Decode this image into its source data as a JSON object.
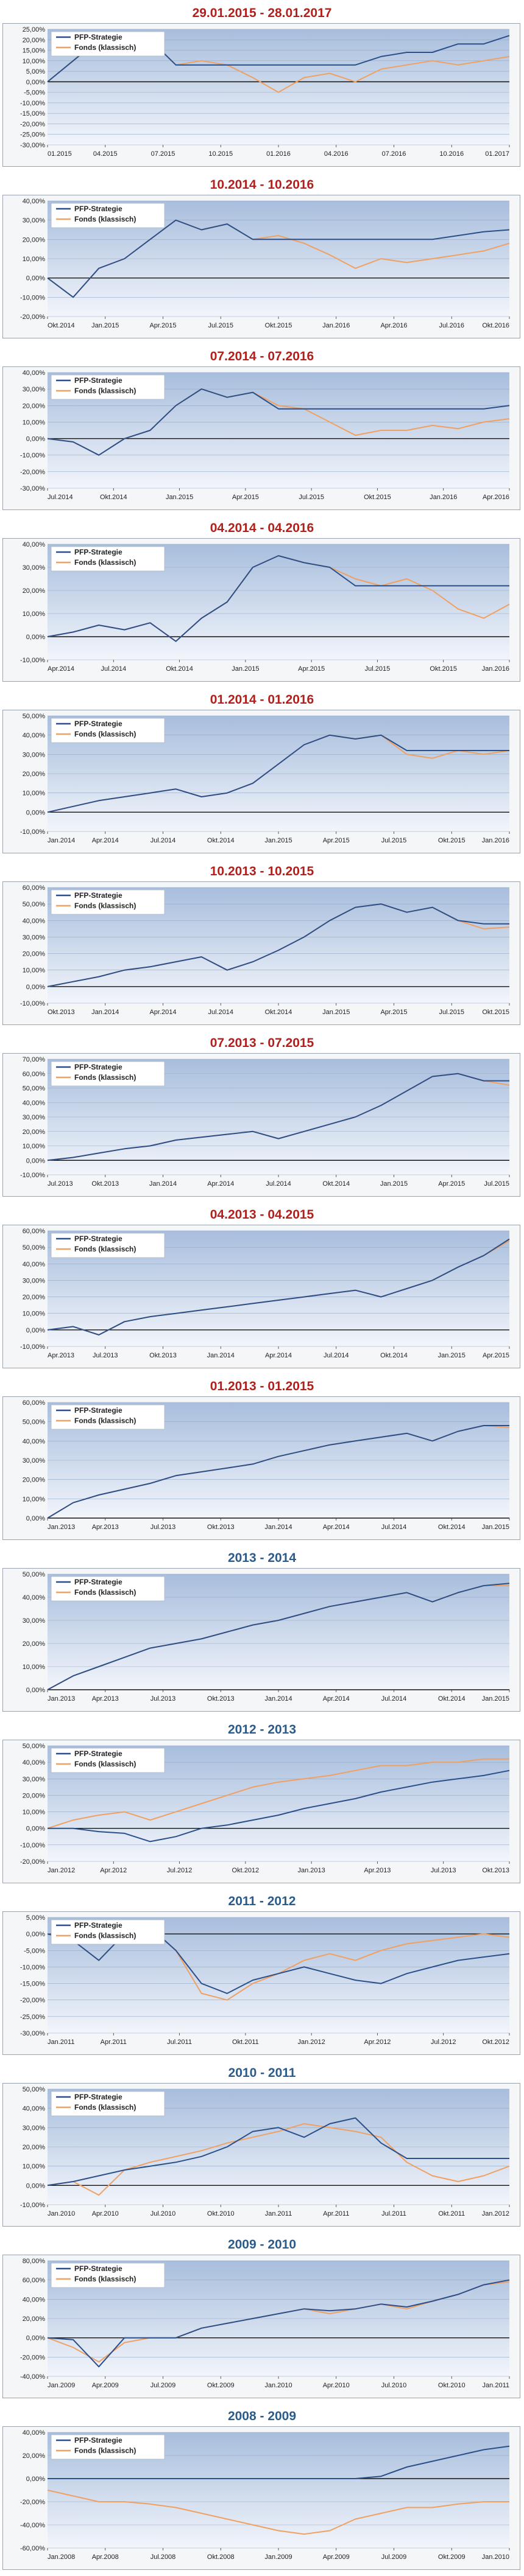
{
  "colors": {
    "strategy": "#2a4f8a",
    "fund": "#f0a060",
    "title_red": "#b0201c",
    "title_blue": "#2a5b8a",
    "plot_top": "#a8bedd",
    "plot_bottom": "#f2f5fb",
    "grid": "#95a8c4"
  },
  "chart_data": [
    {
      "type": "line",
      "title": "29.01.2015 - 28.01.2017",
      "title_color": "red",
      "ylim": [
        -30,
        25
      ],
      "yticks": [
        25,
        20,
        15,
        10,
        5,
        0,
        -5,
        -10,
        -15,
        -20,
        -25,
        -30
      ],
      "xtick_labels": [
        "01.2015",
        "04.2015",
        "07.2015",
        "10.2015",
        "01.2016",
        "04.2016",
        "07.2016",
        "10.2016",
        "01.2017"
      ],
      "series": [
        {
          "name": "PFP-Strategie",
          "values": [
            0,
            10,
            20,
            16,
            20,
            8,
            8,
            8,
            8,
            8,
            8,
            8,
            8,
            12,
            14,
            14,
            18,
            18,
            22
          ]
        },
        {
          "name": "Fonds (klassisch)",
          "values": [
            0,
            10,
            20,
            16,
            20,
            8,
            10,
            8,
            2,
            -5,
            2,
            4,
            0,
            6,
            8,
            10,
            8,
            10,
            12
          ]
        }
      ]
    },
    {
      "type": "line",
      "title": "10.2014 - 10.2016",
      "title_color": "red",
      "ylim": [
        -20,
        40
      ],
      "yticks": [
        40,
        30,
        20,
        10,
        0,
        -10,
        -20
      ],
      "xtick_labels": [
        "Okt.2014",
        "Jan.2015",
        "Apr.2015",
        "Jul.2015",
        "Okt.2015",
        "Jan.2016",
        "Apr.2016",
        "Jul.2016",
        "Okt.2016"
      ],
      "series": [
        {
          "name": "PFP-Strategie",
          "values": [
            0,
            -10,
            5,
            10,
            20,
            30,
            25,
            28,
            20,
            20,
            20,
            20,
            20,
            20,
            20,
            20,
            22,
            24,
            25
          ]
        },
        {
          "name": "Fonds (klassisch)",
          "values": [
            0,
            -10,
            5,
            10,
            20,
            30,
            25,
            28,
            20,
            22,
            18,
            12,
            5,
            10,
            8,
            10,
            12,
            14,
            18
          ]
        }
      ]
    },
    {
      "type": "line",
      "title": "07.2014 - 07.2016",
      "title_color": "red",
      "ylim": [
        -30,
        40
      ],
      "yticks": [
        40,
        30,
        20,
        10,
        0,
        -10,
        -20,
        -30
      ],
      "xtick_labels": [
        "Jul.2014",
        "Okt.2014",
        "Jan.2015",
        "Apr.2015",
        "Jul.2015",
        "Okt.2015",
        "Jan.2016",
        "Apr.2016"
      ],
      "series": [
        {
          "name": "PFP-Strategie",
          "values": [
            0,
            -2,
            -10,
            0,
            5,
            20,
            30,
            25,
            28,
            18,
            18,
            18,
            18,
            18,
            18,
            18,
            18,
            18,
            20
          ]
        },
        {
          "name": "Fonds (klassisch)",
          "values": [
            0,
            -2,
            -10,
            0,
            5,
            20,
            30,
            25,
            28,
            20,
            18,
            10,
            2,
            5,
            5,
            8,
            6,
            10,
            12
          ]
        }
      ]
    },
    {
      "type": "line",
      "title": "04.2014 - 04.2016",
      "title_color": "red",
      "ylim": [
        -10,
        40
      ],
      "yticks": [
        40,
        30,
        20,
        10,
        0,
        -10
      ],
      "xtick_labels": [
        "Apr.2014",
        "Jul.2014",
        "Okt.2014",
        "Jan.2015",
        "Apr.2015",
        "Jul.2015",
        "Okt.2015",
        "Jan.2016"
      ],
      "series": [
        {
          "name": "PFP-Strategie",
          "values": [
            0,
            2,
            5,
            3,
            6,
            -2,
            8,
            15,
            30,
            35,
            32,
            30,
            22,
            22,
            22,
            22,
            22,
            22,
            22
          ]
        },
        {
          "name": "Fonds (klassisch)",
          "values": [
            0,
            2,
            5,
            3,
            6,
            -2,
            8,
            15,
            30,
            35,
            32,
            30,
            25,
            22,
            25,
            20,
            12,
            8,
            14
          ]
        }
      ]
    },
    {
      "type": "line",
      "title": "01.2014 - 01.2016",
      "title_color": "red",
      "ylim": [
        -10,
        50
      ],
      "yticks": [
        50,
        40,
        30,
        20,
        10,
        0,
        -10
      ],
      "xtick_labels": [
        "Jan.2014",
        "Apr.2014",
        "Jul.2014",
        "Okt.2014",
        "Jan.2015",
        "Apr.2015",
        "Jul.2015",
        "Okt.2015",
        "Jan.2016"
      ],
      "series": [
        {
          "name": "PFP-Strategie",
          "values": [
            0,
            3,
            6,
            8,
            10,
            12,
            8,
            10,
            15,
            25,
            35,
            40,
            38,
            40,
            32,
            32,
            32,
            32,
            32
          ]
        },
        {
          "name": "Fonds (klassisch)",
          "values": [
            0,
            3,
            6,
            8,
            10,
            12,
            8,
            10,
            15,
            25,
            35,
            40,
            38,
            40,
            30,
            28,
            32,
            30,
            32
          ]
        }
      ]
    },
    {
      "type": "line",
      "title": "10.2013 - 10.2015",
      "title_color": "red",
      "ylim": [
        -10,
        60
      ],
      "yticks": [
        60,
        50,
        40,
        30,
        20,
        10,
        0,
        -10
      ],
      "xtick_labels": [
        "Okt.2013",
        "Jan.2014",
        "Apr.2014",
        "Jul.2014",
        "Okt.2014",
        "Jan.2015",
        "Apr.2015",
        "Jul.2015",
        "Okt.2015"
      ],
      "series": [
        {
          "name": "PFP-Strategie",
          "values": [
            0,
            3,
            6,
            10,
            12,
            15,
            18,
            10,
            15,
            22,
            30,
            40,
            48,
            50,
            45,
            48,
            40,
            38,
            38
          ]
        },
        {
          "name": "Fonds (klassisch)",
          "values": [
            0,
            3,
            6,
            10,
            12,
            15,
            18,
            10,
            15,
            22,
            30,
            40,
            48,
            50,
            45,
            48,
            40,
            35,
            36
          ]
        }
      ]
    },
    {
      "type": "line",
      "title": "07.2013 - 07.2015",
      "title_color": "red",
      "ylim": [
        -10,
        70
      ],
      "yticks": [
        70,
        60,
        50,
        40,
        30,
        20,
        10,
        0,
        -10
      ],
      "xtick_labels": [
        "Jul.2013",
        "Okt.2013",
        "Jan.2014",
        "Apr.2014",
        "Jul.2014",
        "Okt.2014",
        "Jan.2015",
        "Apr.2015",
        "Jul.2015"
      ],
      "series": [
        {
          "name": "PFP-Strategie",
          "values": [
            0,
            2,
            5,
            8,
            10,
            14,
            16,
            18,
            20,
            15,
            20,
            25,
            30,
            38,
            48,
            58,
            60,
            55,
            55
          ]
        },
        {
          "name": "Fonds (klassisch)",
          "values": [
            0,
            2,
            5,
            8,
            10,
            14,
            16,
            18,
            20,
            15,
            20,
            25,
            30,
            38,
            48,
            58,
            60,
            55,
            52
          ]
        }
      ]
    },
    {
      "type": "line",
      "title": "04.2013 - 04.2015",
      "title_color": "red",
      "ylim": [
        -10,
        60
      ],
      "yticks": [
        60,
        50,
        40,
        30,
        20,
        10,
        0,
        -10
      ],
      "xtick_labels": [
        "Apr.2013",
        "Jul.2013",
        "Okt.2013",
        "Jan.2014",
        "Apr.2014",
        "Jul.2014",
        "Okt.2014",
        "Jan.2015",
        "Apr.2015"
      ],
      "series": [
        {
          "name": "PFP-Strategie",
          "values": [
            0,
            2,
            -3,
            5,
            8,
            10,
            12,
            14,
            16,
            18,
            20,
            22,
            24,
            20,
            25,
            30,
            38,
            45,
            55
          ]
        },
        {
          "name": "Fonds (klassisch)",
          "values": [
            0,
            2,
            -3,
            5,
            8,
            10,
            12,
            14,
            16,
            18,
            20,
            22,
            24,
            20,
            25,
            30,
            38,
            45,
            54
          ]
        }
      ]
    },
    {
      "type": "line",
      "title": "01.2013 - 01.2015",
      "title_color": "red",
      "ylim": [
        0,
        60
      ],
      "yticks": [
        60,
        50,
        40,
        30,
        20,
        10,
        0
      ],
      "xtick_labels": [
        "Jan.2013",
        "Apr.2013",
        "Jul.2013",
        "Okt.2013",
        "Jan.2014",
        "Apr.2014",
        "Jul.2014",
        "Okt.2014",
        "Jan.2015"
      ],
      "series": [
        {
          "name": "PFP-Strategie",
          "values": [
            0,
            8,
            12,
            15,
            18,
            22,
            24,
            26,
            28,
            32,
            35,
            38,
            40,
            42,
            44,
            40,
            45,
            48,
            48
          ]
        },
        {
          "name": "Fonds (klassisch)",
          "values": [
            0,
            8,
            12,
            15,
            18,
            22,
            24,
            26,
            28,
            32,
            35,
            38,
            40,
            42,
            44,
            40,
            45,
            48,
            47
          ]
        }
      ]
    },
    {
      "type": "line",
      "title": "2013 - 2014",
      "title_color": "blue",
      "ylim": [
        0,
        50
      ],
      "yticks": [
        50,
        40,
        30,
        20,
        10,
        0
      ],
      "xtick_labels": [
        "Jan.2013",
        "Apr.2013",
        "Jul.2013",
        "Okt.2013",
        "Jan.2014",
        "Apr.2014",
        "Jul.2014",
        "Okt.2014",
        "Jan.2015"
      ],
      "series": [
        {
          "name": "PFP-Strategie",
          "values": [
            0,
            6,
            10,
            14,
            18,
            20,
            22,
            25,
            28,
            30,
            33,
            36,
            38,
            40,
            42,
            38,
            42,
            45,
            46
          ]
        },
        {
          "name": "Fonds (klassisch)",
          "values": [
            0,
            6,
            10,
            14,
            18,
            20,
            22,
            25,
            28,
            30,
            33,
            36,
            38,
            40,
            42,
            38,
            42,
            45,
            45
          ]
        }
      ]
    },
    {
      "type": "line",
      "title": "2012 - 2013",
      "title_color": "blue",
      "ylim": [
        -20,
        50
      ],
      "yticks": [
        50,
        40,
        30,
        20,
        10,
        0,
        -10,
        -20
      ],
      "xtick_labels": [
        "Jan.2012",
        "Apr.2012",
        "Jul.2012",
        "Okt.2012",
        "Jan.2013",
        "Apr.2013",
        "Jul.2013",
        "Okt.2013"
      ],
      "series": [
        {
          "name": "PFP-Strategie",
          "values": [
            0,
            0,
            -2,
            -3,
            -8,
            -5,
            0,
            2,
            5,
            8,
            12,
            15,
            18,
            22,
            25,
            28,
            30,
            32,
            35
          ]
        },
        {
          "name": "Fonds (klassisch)",
          "values": [
            0,
            5,
            8,
            10,
            5,
            10,
            15,
            20,
            25,
            28,
            30,
            32,
            35,
            38,
            38,
            40,
            40,
            42,
            42
          ]
        }
      ]
    },
    {
      "type": "line",
      "title": "2011 - 2012",
      "title_color": "blue",
      "ylim": [
        -30,
        5
      ],
      "yticks": [
        5,
        0,
        -5,
        -10,
        -15,
        -20,
        -25,
        -30
      ],
      "xtick_labels": [
        "Jan.2011",
        "Apr.2011",
        "Jul.2011",
        "Okt.2011",
        "Jan.2012",
        "Apr.2012",
        "Jul.2012",
        "Okt.2012"
      ],
      "series": [
        {
          "name": "PFP-Strategie",
          "values": [
            0,
            -2,
            -8,
            0,
            2,
            -5,
            -15,
            -18,
            -14,
            -12,
            -10,
            -12,
            -14,
            -15,
            -12,
            -10,
            -8,
            -7,
            -6
          ]
        },
        {
          "name": "Fonds (klassisch)",
          "values": [
            0,
            -2,
            -8,
            0,
            2,
            -5,
            -18,
            -20,
            -15,
            -12,
            -8,
            -6,
            -8,
            -5,
            -3,
            -2,
            -1,
            0,
            -1
          ]
        }
      ]
    },
    {
      "type": "line",
      "title": "2010 - 2011",
      "title_color": "blue",
      "ylim": [
        -10,
        50
      ],
      "yticks": [
        50,
        40,
        30,
        20,
        10,
        0,
        -10
      ],
      "xtick_labels": [
        "Jan.2010",
        "Apr.2010",
        "Jul.2010",
        "Okt.2010",
        "Jan.2011",
        "Apr.2011",
        "Jul.2011",
        "Okt.2011",
        "Jan.2012"
      ],
      "series": [
        {
          "name": "PFP-Strategie",
          "values": [
            0,
            2,
            5,
            8,
            10,
            12,
            15,
            20,
            28,
            30,
            25,
            32,
            35,
            22,
            14,
            14,
            14,
            14,
            14
          ]
        },
        {
          "name": "Fonds (klassisch)",
          "values": [
            0,
            2,
            -5,
            8,
            12,
            15,
            18,
            22,
            25,
            28,
            32,
            30,
            28,
            25,
            12,
            5,
            2,
            5,
            10
          ]
        }
      ]
    },
    {
      "type": "line",
      "title": "2009 - 2010",
      "title_color": "blue",
      "ylim": [
        -40,
        80
      ],
      "yticks": [
        80,
        60,
        40,
        20,
        0,
        -20,
        -40
      ],
      "xtick_labels": [
        "Jan.2009",
        "Apr.2009",
        "Jul.2009",
        "Okt.2009",
        "Jan.2010",
        "Apr.2010",
        "Jul.2010",
        "Okt.2010",
        "Jan.2011"
      ],
      "series": [
        {
          "name": "PFP-Strategie",
          "values": [
            0,
            -2,
            -30,
            0,
            0,
            0,
            10,
            15,
            20,
            25,
            30,
            28,
            30,
            35,
            32,
            38,
            45,
            55,
            60
          ]
        },
        {
          "name": "Fonds (klassisch)",
          "values": [
            0,
            -10,
            -25,
            -5,
            0,
            0,
            10,
            15,
            20,
            25,
            30,
            25,
            30,
            35,
            30,
            38,
            45,
            55,
            58
          ]
        }
      ]
    },
    {
      "type": "line",
      "title": "2008 - 2009",
      "title_color": "blue",
      "ylim": [
        -60,
        40
      ],
      "yticks": [
        40,
        20,
        0,
        -20,
        -40,
        -60
      ],
      "xtick_labels": [
        "Jan.2008",
        "Apr.2008",
        "Jul.2008",
        "Okt.2008",
        "Jan.2009",
        "Apr.2009",
        "Jul.2009",
        "Okt.2009",
        "Jan.2010"
      ],
      "series": [
        {
          "name": "PFP-Strategie",
          "values": [
            0,
            0,
            0,
            0,
            0,
            0,
            0,
            0,
            0,
            0,
            0,
            0,
            0,
            2,
            10,
            15,
            20,
            25,
            28
          ]
        },
        {
          "name": "Fonds (klassisch)",
          "values": [
            -10,
            -15,
            -20,
            -20,
            -22,
            -25,
            -30,
            -35,
            -40,
            -45,
            -48,
            -45,
            -35,
            -30,
            -25,
            -25,
            -22,
            -20,
            -20
          ]
        }
      ]
    }
  ]
}
